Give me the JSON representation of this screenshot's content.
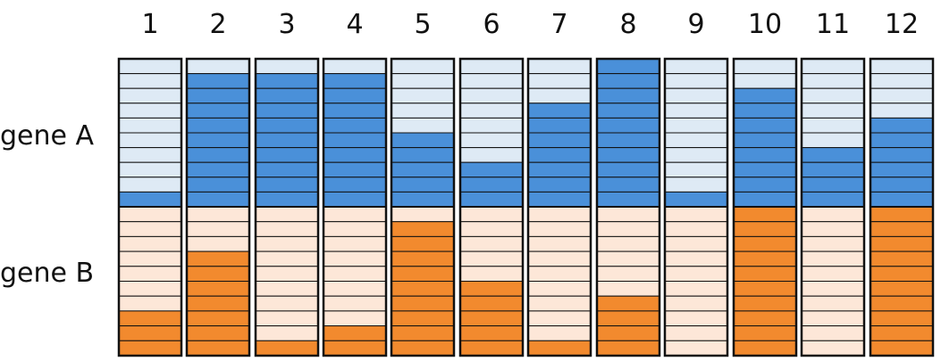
{
  "rows": {
    "gene_a_label": "gene A",
    "gene_b_label": "gene B"
  },
  "colors": {
    "gene_a_dark": "#4a90d9",
    "gene_a_light": "#deeaf5",
    "gene_b_dark": "#f28a2e",
    "gene_b_light": "#fde7d8",
    "outline": "#111111"
  },
  "segments_per_gene": 10,
  "columns": [
    {
      "label": "1",
      "gene_a_filled": 1,
      "gene_b_filled": 3
    },
    {
      "label": "2",
      "gene_a_filled": 9,
      "gene_b_filled": 7
    },
    {
      "label": "3",
      "gene_a_filled": 9,
      "gene_b_filled": 1
    },
    {
      "label": "4",
      "gene_a_filled": 9,
      "gene_b_filled": 2
    },
    {
      "label": "5",
      "gene_a_filled": 5,
      "gene_b_filled": 9
    },
    {
      "label": "6",
      "gene_a_filled": 3,
      "gene_b_filled": 5
    },
    {
      "label": "7",
      "gene_a_filled": 7,
      "gene_b_filled": 1
    },
    {
      "label": "8",
      "gene_a_filled": 10,
      "gene_b_filled": 4
    },
    {
      "label": "9",
      "gene_a_filled": 1,
      "gene_b_filled": 0
    },
    {
      "label": "10",
      "gene_a_filled": 8,
      "gene_b_filled": 10
    },
    {
      "label": "11",
      "gene_a_filled": 4,
      "gene_b_filled": 0
    },
    {
      "label": "12",
      "gene_a_filled": 6,
      "gene_b_filled": 10
    }
  ]
}
